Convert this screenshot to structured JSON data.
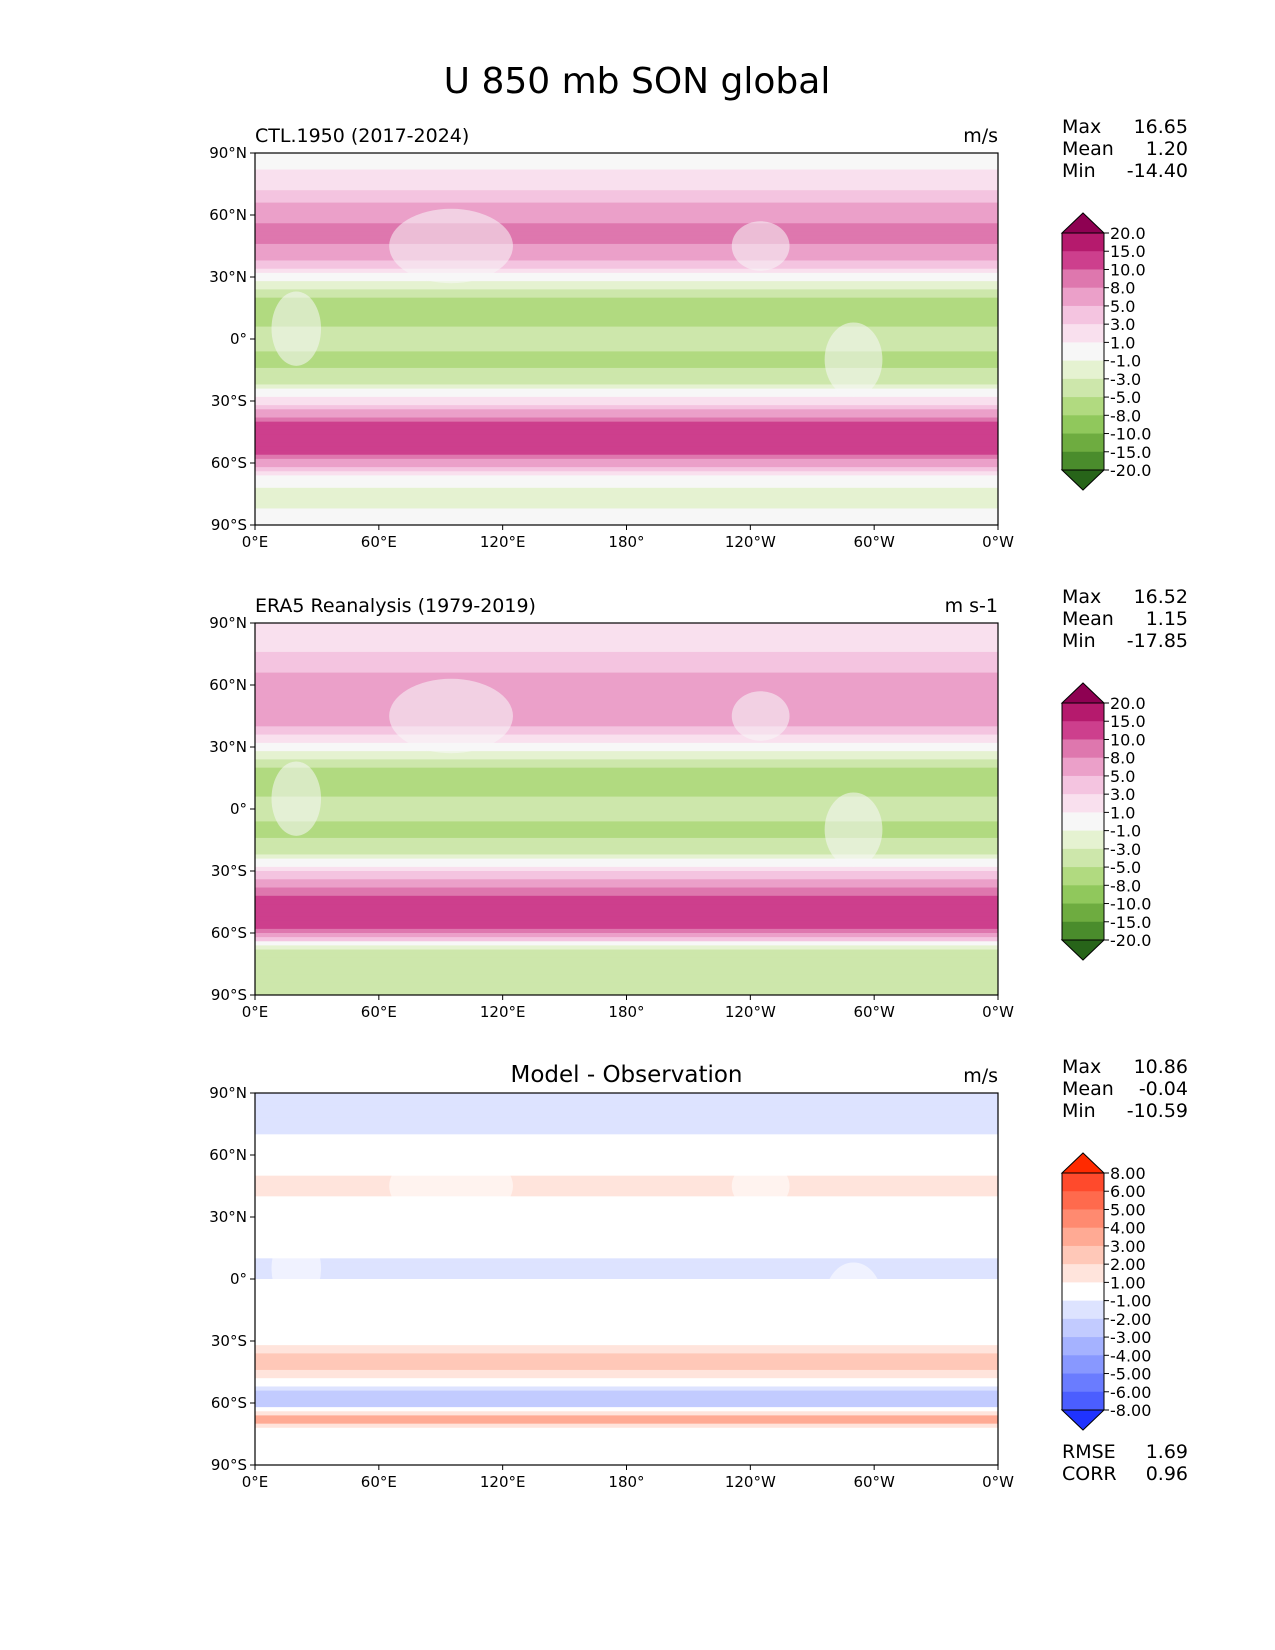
{
  "figure": {
    "title": "U 850 mb SON global"
  },
  "chart_data": [
    {
      "type": "heatmap",
      "map_projection": "equirectangular",
      "title_left": "CTL.1950 (2017-2024)",
      "title_center": "",
      "units": "m/s",
      "xlim": [
        0,
        360
      ],
      "ylim": [
        -90,
        90
      ],
      "xticks": [
        "0°E",
        "60°E",
        "120°E",
        "180°",
        "120°W",
        "60°W",
        "0°W"
      ],
      "yticks": [
        "90°N",
        "60°N",
        "30°N",
        "0°",
        "30°S",
        "60°S",
        "90°S"
      ],
      "stats": [
        {
          "label": "Max",
          "value": "16.65"
        },
        {
          "label": "Mean",
          "value": "1.20"
        },
        {
          "label": "Min",
          "value": "-14.40"
        }
      ],
      "colorbar": {
        "levels": [
          "20.0",
          "15.0",
          "10.0",
          "8.0",
          "5.0",
          "3.0",
          "1.0",
          "-1.0",
          "-3.0",
          "-5.0",
          "-8.0",
          "-10.0",
          "-15.0",
          "-20.0"
        ],
        "colors": [
          "#8e0152",
          "#b51a6d",
          "#cd3f8d",
          "#de77ae",
          "#eba0c9",
          "#f4c4e0",
          "#f9e0ee",
          "#f7f7f7",
          "#e5f2d1",
          "#cde7ab",
          "#b1da80",
          "#90c85c",
          "#6eac40",
          "#4a8c2c",
          "#276419"
        ],
        "extend": "both"
      },
      "zonal_profile": [
        {
          "lat": 90,
          "v": -0.5
        },
        {
          "lat": 75,
          "v": 2
        },
        {
          "lat": 60,
          "v": 7
        },
        {
          "lat": 50,
          "v": 9
        },
        {
          "lat": 40,
          "v": 6
        },
        {
          "lat": 30,
          "v": 0
        },
        {
          "lat": 20,
          "v": -5
        },
        {
          "lat": 10,
          "v": -6
        },
        {
          "lat": 0,
          "v": -4
        },
        {
          "lat": -10,
          "v": -6
        },
        {
          "lat": -20,
          "v": -4
        },
        {
          "lat": -30,
          "v": 2
        },
        {
          "lat": -45,
          "v": 13
        },
        {
          "lat": -52,
          "v": 14
        },
        {
          "lat": -60,
          "v": 7
        },
        {
          "lat": -68,
          "v": 0
        },
        {
          "lat": -75,
          "v": -2
        },
        {
          "lat": -90,
          "v": 0
        }
      ]
    },
    {
      "type": "heatmap",
      "map_projection": "equirectangular",
      "title_left": "ERA5 Reanalysis (1979-2019)",
      "title_center": "",
      "units": "m s-1",
      "xlim": [
        0,
        360
      ],
      "ylim": [
        -90,
        90
      ],
      "xticks": [
        "0°E",
        "60°E",
        "120°E",
        "180°",
        "120°W",
        "60°W",
        "0°W"
      ],
      "yticks": [
        "90°N",
        "60°N",
        "30°N",
        "0°",
        "30°S",
        "60°S",
        "90°S"
      ],
      "stats": [
        {
          "label": "Max",
          "value": "16.52"
        },
        {
          "label": "Mean",
          "value": "1.15"
        },
        {
          "label": "Min",
          "value": "-17.85"
        }
      ],
      "colorbar": {
        "levels": [
          "20.0",
          "15.0",
          "10.0",
          "8.0",
          "5.0",
          "3.0",
          "1.0",
          "-1.0",
          "-3.0",
          "-5.0",
          "-8.0",
          "-10.0",
          "-15.0",
          "-20.0"
        ],
        "colors": [
          "#8e0152",
          "#b51a6d",
          "#cd3f8d",
          "#de77ae",
          "#eba0c9",
          "#f4c4e0",
          "#f9e0ee",
          "#f7f7f7",
          "#e5f2d1",
          "#cde7ab",
          "#b1da80",
          "#90c85c",
          "#6eac40",
          "#4a8c2c",
          "#276419"
        ],
        "extend": "both"
      },
      "zonal_profile": [
        {
          "lat": 90,
          "v": 1
        },
        {
          "lat": 75,
          "v": 3
        },
        {
          "lat": 60,
          "v": 6
        },
        {
          "lat": 50,
          "v": 8
        },
        {
          "lat": 40,
          "v": 5
        },
        {
          "lat": 30,
          "v": 0
        },
        {
          "lat": 20,
          "v": -5
        },
        {
          "lat": 10,
          "v": -6
        },
        {
          "lat": 0,
          "v": -3
        },
        {
          "lat": -10,
          "v": -6
        },
        {
          "lat": -20,
          "v": -4
        },
        {
          "lat": -30,
          "v": 3
        },
        {
          "lat": -45,
          "v": 12
        },
        {
          "lat": -52,
          "v": 13
        },
        {
          "lat": -60,
          "v": 9
        },
        {
          "lat": -66,
          "v": -2
        },
        {
          "lat": -72,
          "v": -5
        },
        {
          "lat": -90,
          "v": -3
        }
      ]
    },
    {
      "type": "heatmap",
      "map_projection": "equirectangular",
      "title_left": "",
      "title_center": "Model - Observation",
      "units": "m/s",
      "xlim": [
        0,
        360
      ],
      "ylim": [
        -90,
        90
      ],
      "xticks": [
        "0°E",
        "60°E",
        "120°E",
        "180°",
        "120°W",
        "60°W",
        "0°W"
      ],
      "yticks": [
        "90°N",
        "60°N",
        "30°N",
        "0°",
        "30°S",
        "60°S",
        "90°S"
      ],
      "stats": [
        {
          "label": "Max",
          "value": "10.86"
        },
        {
          "label": "Mean",
          "value": "-0.04"
        },
        {
          "label": "Min",
          "value": "-10.59"
        }
      ],
      "extra_stats": [
        {
          "label": "RMSE",
          "value": "1.69"
        },
        {
          "label": "CORR",
          "value": "0.96"
        }
      ],
      "colorbar": {
        "levels": [
          "8.00",
          "6.00",
          "5.00",
          "4.00",
          "3.00",
          "2.00",
          "1.00",
          "-1.00",
          "-2.00",
          "-3.00",
          "-4.00",
          "-5.00",
          "-6.00",
          "-8.00"
        ],
        "colors": [
          "#ff2a00",
          "#ff4a2c",
          "#ff6a4d",
          "#ff8a70",
          "#ffaa94",
          "#ffc8b8",
          "#ffe4dc",
          "#ffffff",
          "#dde3ff",
          "#c2cbff",
          "#a5b2ff",
          "#8898ff",
          "#6a7cff",
          "#4b5eff",
          "#1f33ff"
        ],
        "extend": "both"
      },
      "zonal_profile": [
        {
          "lat": 90,
          "v": -1.5
        },
        {
          "lat": 75,
          "v": -1.5
        },
        {
          "lat": 60,
          "v": 0
        },
        {
          "lat": 45,
          "v": 1.5
        },
        {
          "lat": 30,
          "v": 0
        },
        {
          "lat": 15,
          "v": -0.5
        },
        {
          "lat": 5,
          "v": -1.5
        },
        {
          "lat": -5,
          "v": -0.5
        },
        {
          "lat": -15,
          "v": 0
        },
        {
          "lat": -30,
          "v": 0.5
        },
        {
          "lat": -40,
          "v": 3
        },
        {
          "lat": -48,
          "v": 1
        },
        {
          "lat": -56,
          "v": -2.5
        },
        {
          "lat": -62,
          "v": -2
        },
        {
          "lat": -68,
          "v": 4
        },
        {
          "lat": -72,
          "v": 1
        },
        {
          "lat": -90,
          "v": 0
        }
      ]
    }
  ]
}
